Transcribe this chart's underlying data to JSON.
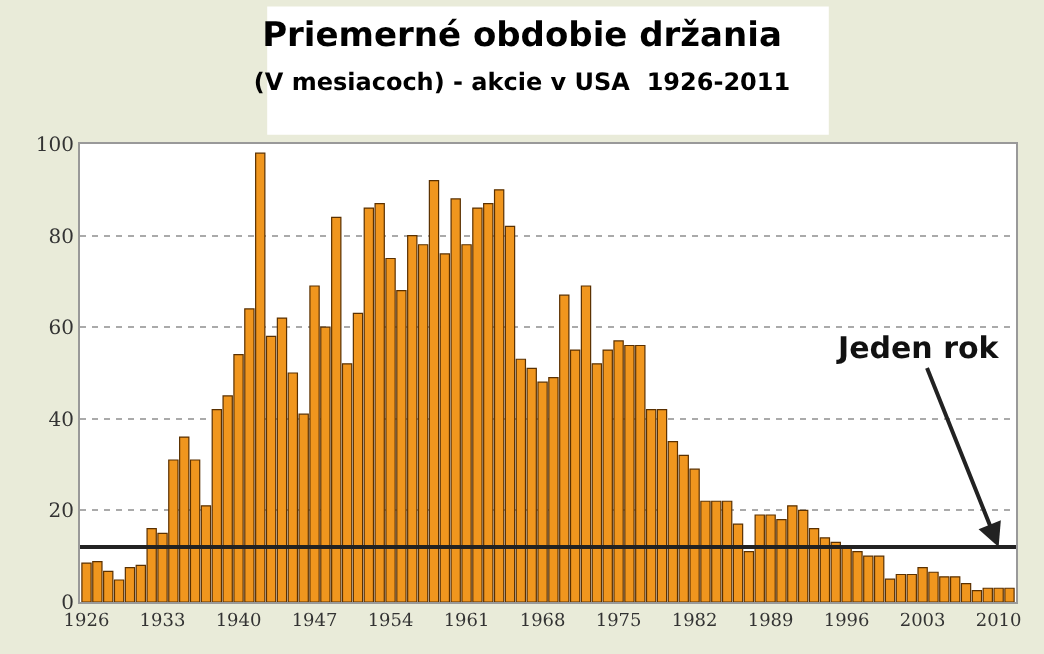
{
  "chart_data": {
    "type": "bar",
    "title": "Priemerné obdobie držania",
    "subtitle": "(V mesiacoch) - akcie v USA  1926-2011",
    "categories": [
      "1926",
      null,
      null,
      null,
      null,
      null,
      null,
      "1933",
      null,
      null,
      null,
      null,
      null,
      null,
      "1940",
      null,
      null,
      null,
      null,
      null,
      null,
      "1947",
      null,
      null,
      null,
      null,
      null,
      null,
      "1954",
      null,
      null,
      null,
      null,
      null,
      null,
      "1961",
      null,
      null,
      null,
      null,
      null,
      null,
      "1968",
      null,
      null,
      null,
      null,
      null,
      null,
      "1975",
      null,
      null,
      null,
      null,
      null,
      null,
      "1982",
      null,
      null,
      null,
      null,
      null,
      null,
      "1989",
      null,
      null,
      null,
      null,
      null,
      null,
      "1996",
      null,
      null,
      null,
      null,
      null,
      null,
      "2003",
      null,
      null,
      null,
      null,
      null,
      null,
      "2010",
      null
    ],
    "values": [
      8.5,
      8.8,
      6.7,
      4.8,
      7.5,
      8,
      16,
      15,
      31,
      36,
      31,
      21,
      42,
      45,
      54,
      64,
      98,
      58,
      62,
      50,
      41,
      69,
      60,
      84,
      52,
      63,
      86,
      87,
      75,
      68,
      80,
      78,
      92,
      76,
      88,
      78,
      86,
      87,
      90,
      82,
      53,
      51,
      48,
      49,
      67,
      55,
      69,
      52,
      55,
      57,
      56,
      56,
      42,
      42,
      35,
      32,
      29,
      22,
      22,
      22,
      17,
      11,
      19,
      19,
      18,
      21,
      20,
      16,
      14,
      13,
      12,
      11,
      10,
      10,
      5,
      6,
      6,
      7.5,
      6.5,
      5.5,
      5.5,
      4,
      2.5,
      3,
      3,
      3
    ],
    "color": "#f0961e",
    "ylim": [
      0,
      100
    ],
    "yticks": [
      0,
      20,
      40,
      60,
      80,
      100
    ],
    "grid": "y",
    "ref_lines": [
      {
        "axis": "y",
        "value": 12,
        "color": "#222222"
      }
    ],
    "annotations": [
      {
        "text": "Jeden rok",
        "x": "2010",
        "y": 12
      }
    ]
  }
}
